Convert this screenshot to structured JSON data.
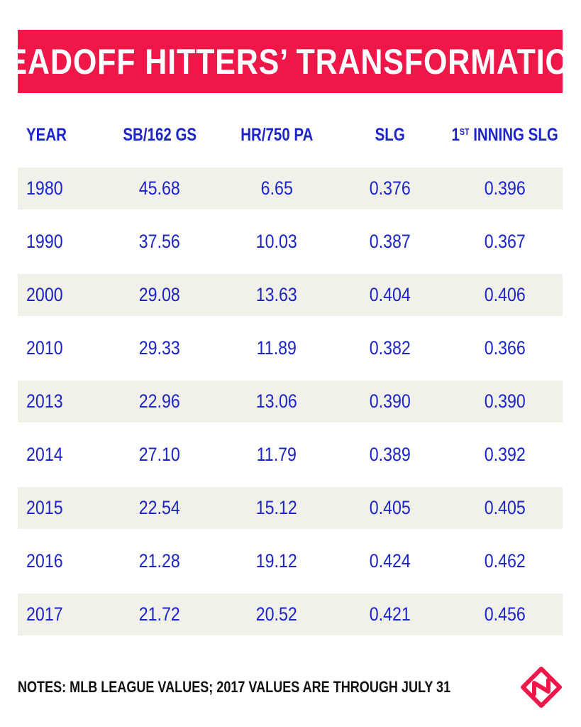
{
  "title": "LEADOFF HITTERS’ TRANSFORMATION",
  "colors": {
    "banner": "#ee1747",
    "text": "#1b24c9",
    "row_shade": "#f1f0e9",
    "logo": "#ee1747"
  },
  "chart_data": {
    "type": "table",
    "title": "LEADOFF HITTERS’ TRANSFORMATION",
    "columns": [
      "YEAR",
      "SB/162 GS",
      "HR/750 PA",
      "SLG",
      "1ST INNING SLG"
    ],
    "header": {
      "year": "YEAR",
      "sb": "SB/162 GS",
      "hr": "HR/750 PA",
      "slg": "SLG",
      "first_num": "1",
      "first_sup": "ST",
      "first_rest": "INNING SLG"
    },
    "rows": [
      [
        "1980",
        "45.68",
        "6.65",
        "0.376",
        "0.396"
      ],
      [
        "1990",
        "37.56",
        "10.03",
        "0.387",
        "0.367"
      ],
      [
        "2000",
        "29.08",
        "13.63",
        "0.404",
        "0.406"
      ],
      [
        "2010",
        "29.33",
        "11.89",
        "0.382",
        "0.366"
      ],
      [
        "2013",
        "22.96",
        "13.06",
        "0.390",
        "0.390"
      ],
      [
        "2014",
        "27.10",
        "11.79",
        "0.389",
        "0.392"
      ],
      [
        "2015",
        "22.54",
        "15.12",
        "0.405",
        "0.405"
      ],
      [
        "2016",
        "21.28",
        "19.12",
        "0.424",
        "0.462"
      ],
      [
        "2017",
        "21.72",
        "20.52",
        "0.421",
        "0.456"
      ]
    ]
  },
  "notes": "NOTES: MLB LEAGUE VALUES; 2017 VALUES ARE THROUGH JULY 31",
  "logo_icon": "sporting-news-logo-icon"
}
